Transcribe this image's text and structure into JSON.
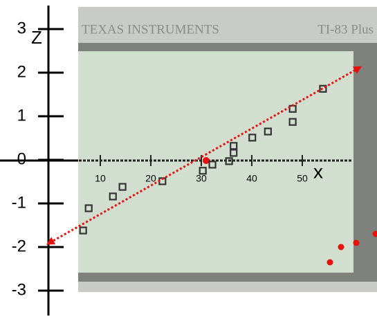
{
  "chart_data": {
    "type": "scatter",
    "brand": "TEXAS INSTRUMENTS",
    "model": "TI-83 Plus",
    "xlabel": "x",
    "ylabel": "Z",
    "x": [
      6.6,
      7.7,
      12.5,
      14.4,
      22.3,
      30.3,
      32.2,
      35.5,
      36.4,
      36.4,
      40.1,
      43.2,
      48.1,
      48.1,
      54.1
    ],
    "values": [
      -1.62,
      -1.11,
      -0.84,
      -0.62,
      -0.49,
      -0.25,
      -0.11,
      -0.03,
      0.16,
      0.32,
      0.51,
      0.65,
      0.87,
      1.17,
      1.63
    ],
    "color": "#333333",
    "fit": {
      "x": [
        0,
        61.1
      ],
      "values": [
        -1.9,
        2.1
      ],
      "color": "#e8120c"
    },
    "xlim": [
      0,
      60
    ],
    "ylim": [
      -3,
      3
    ],
    "xticks": [
      10,
      20,
      30,
      40,
      50
    ],
    "yticks": [
      3,
      2,
      1,
      0,
      -1,
      -2,
      -3
    ]
  }
}
